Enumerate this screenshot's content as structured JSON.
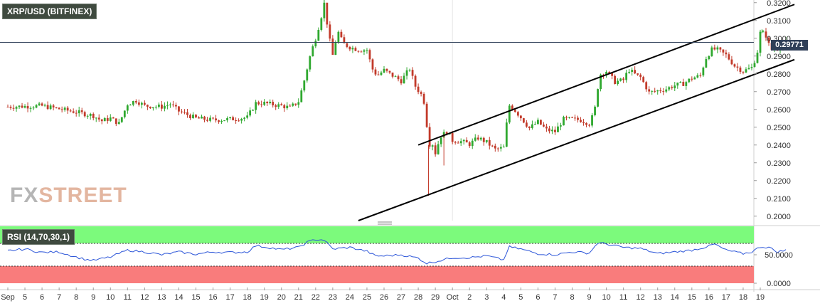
{
  "title": "XRP/USD (BITFINEX)",
  "watermark": {
    "fx": "FX",
    "street": "STREET"
  },
  "current_price_label": "0.29771",
  "rsi": {
    "label": "RSI (14,70,30,1)",
    "axis_labels": [
      "50.0000",
      "0.0000"
    ]
  },
  "colors": {
    "up": "#2fa82f",
    "down": "#c23a2a",
    "rsi_line": "#2a54d8",
    "overbought": "#7cfa7c",
    "oversold": "#f97c7c",
    "channel": "#000000",
    "price_line": "#2f3f58"
  },
  "chart_data": {
    "type": "candlestick",
    "title": "XRP/USD (BITFINEX)",
    "y_ticks": [
      "0.3200",
      "0.3100",
      "0.3000",
      "0.2900",
      "0.2800",
      "0.2700",
      "0.2600",
      "0.2500",
      "0.2400",
      "0.2300",
      "0.2200",
      "0.2100",
      "0.2000"
    ],
    "ylim": [
      0.1975,
      0.3215
    ],
    "x_ticks": [
      "Sep",
      "5",
      "6",
      "7",
      "8",
      "9",
      "10",
      "11",
      "12",
      "13",
      "14",
      "15",
      "16",
      "17",
      "18",
      "19",
      "20",
      "21",
      "22",
      "23",
      "24",
      "25",
      "26",
      "27",
      "28",
      "29",
      "Oct",
      "2",
      "3",
      "4",
      "5",
      "6",
      "7",
      "8",
      "9",
      "10",
      "11",
      "12",
      "13",
      "14",
      "15",
      "16",
      "17",
      "18",
      "19"
    ],
    "current_price": 0.29771,
    "close_path": [
      [
        0,
        0.2615
      ],
      [
        2,
        0.262
      ],
      [
        4,
        0.2585
      ],
      [
        5,
        0.2565
      ],
      [
        5.5,
        0.2535
      ],
      [
        6,
        0.255
      ],
      [
        6.5,
        0.252
      ],
      [
        7,
        0.263
      ],
      [
        7.5,
        0.265
      ],
      [
        8,
        0.262
      ],
      [
        9,
        0.2615
      ],
      [
        9.5,
        0.263
      ],
      [
        10,
        0.259
      ],
      [
        11,
        0.255
      ],
      [
        12,
        0.254
      ],
      [
        13,
        0.2545
      ],
      [
        14,
        0.2555
      ],
      [
        14.5,
        0.2635
      ],
      [
        15,
        0.2635
      ],
      [
        16,
        0.262
      ],
      [
        16.5,
        0.261
      ],
      [
        17,
        0.2645
      ],
      [
        17.3,
        0.275
      ],
      [
        17.7,
        0.291
      ],
      [
        18,
        0.3
      ],
      [
        18.3,
        0.311
      ],
      [
        18.5,
        0.3195
      ],
      [
        18.8,
        0.3
      ],
      [
        19,
        0.2905
      ],
      [
        19.3,
        0.304
      ],
      [
        19.6,
        0.297
      ],
      [
        20,
        0.295
      ],
      [
        20.5,
        0.2935
      ],
      [
        21,
        0.2935
      ],
      [
        21.3,
        0.283
      ],
      [
        21.6,
        0.279
      ],
      [
        22,
        0.282
      ],
      [
        22.5,
        0.279
      ],
      [
        23,
        0.276
      ],
      [
        23.5,
        0.283
      ],
      [
        23.8,
        0.2735
      ],
      [
        24.2,
        0.268
      ],
      [
        24.4,
        0.2625
      ],
      [
        24.6,
        0.24
      ],
      [
        24.8,
        0.2415
      ],
      [
        25,
        0.2355
      ],
      [
        25.3,
        0.245
      ],
      [
        25.7,
        0.2475
      ],
      [
        26,
        0.2425
      ],
      [
        26.5,
        0.242
      ],
      [
        27,
        0.2405
      ],
      [
        27.5,
        0.244
      ],
      [
        28,
        0.2415
      ],
      [
        28.5,
        0.2375
      ],
      [
        29,
        0.2385
      ],
      [
        29.3,
        0.2625
      ],
      [
        29.7,
        0.259
      ],
      [
        30,
        0.2555
      ],
      [
        30.5,
        0.2495
      ],
      [
        31,
        0.253
      ],
      [
        31.5,
        0.2485
      ],
      [
        32,
        0.2475
      ],
      [
        32.5,
        0.2545
      ],
      [
        33,
        0.2545
      ],
      [
        33.5,
        0.254
      ],
      [
        34,
        0.252
      ],
      [
        34.3,
        0.2585
      ],
      [
        34.6,
        0.2795
      ],
      [
        35,
        0.2815
      ],
      [
        35.5,
        0.2755
      ],
      [
        36,
        0.2765
      ],
      [
        36.3,
        0.2825
      ],
      [
        36.7,
        0.2795
      ],
      [
        37,
        0.278
      ],
      [
        37.5,
        0.2695
      ],
      [
        38,
        0.2705
      ],
      [
        38.5,
        0.2715
      ],
      [
        39,
        0.2735
      ],
      [
        39.5,
        0.2745
      ],
      [
        40,
        0.2775
      ],
      [
        40.5,
        0.279
      ],
      [
        40.8,
        0.2885
      ],
      [
        41.2,
        0.294
      ],
      [
        41.5,
        0.2935
      ],
      [
        42,
        0.2905
      ],
      [
        42.5,
        0.2845
      ],
      [
        43,
        0.2815
      ],
      [
        43.5,
        0.2835
      ],
      [
        43.8,
        0.2905
      ],
      [
        44,
        0.303
      ],
      [
        44.3,
        0.3025
      ],
      [
        44.6,
        0.2935
      ],
      [
        45,
        0.2945
      ],
      [
        45.3,
        0.2965
      ],
      [
        45.5,
        0.29771
      ]
    ],
    "wick_spikes": [
      {
        "x": 18.5,
        "high": 0.3215
      },
      {
        "x": 24.6,
        "low": 0.2115
      },
      {
        "x": 25.5,
        "low": 0.2285
      },
      {
        "x": 44.1,
        "high": 0.305
      }
    ],
    "channel_lines": [
      {
        "name": "upper",
        "from": [
          24.0,
          0.24
        ],
        "to": [
          46.0,
          0.319
        ]
      },
      {
        "name": "lower",
        "from": [
          20.5,
          0.1975
        ],
        "to": [
          46.0,
          0.288
        ]
      }
    ],
    "rsi_series": {
      "overbought": 70,
      "oversold": 30,
      "ylim": [
        0,
        100
      ],
      "path": [
        [
          0,
          57
        ],
        [
          1,
          60
        ],
        [
          2,
          54
        ],
        [
          3,
          55
        ],
        [
          4,
          46
        ],
        [
          4.5,
          42
        ],
        [
          5,
          40
        ],
        [
          6,
          46
        ],
        [
          7,
          58
        ],
        [
          8,
          55
        ],
        [
          9,
          50
        ],
        [
          10,
          55
        ],
        [
          11,
          51
        ],
        [
          12,
          55
        ],
        [
          13,
          54
        ],
        [
          14,
          55
        ],
        [
          14.5,
          66
        ],
        [
          15,
          64
        ],
        [
          16,
          59
        ],
        [
          17,
          63
        ],
        [
          17.5,
          72
        ],
        [
          18,
          77
        ],
        [
          18.5,
          76
        ],
        [
          19,
          60
        ],
        [
          20,
          63
        ],
        [
          21,
          56
        ],
        [
          21.5,
          48
        ],
        [
          22,
          48
        ],
        [
          23,
          50
        ],
        [
          23.5,
          47
        ],
        [
          24,
          44
        ],
        [
          24.5,
          35
        ],
        [
          25,
          38
        ],
        [
          26,
          45
        ],
        [
          27,
          45
        ],
        [
          28,
          48
        ],
        [
          29,
          41
        ],
        [
          29.3,
          64
        ],
        [
          30,
          60
        ],
        [
          31,
          52
        ],
        [
          32,
          50
        ],
        [
          33,
          55
        ],
        [
          34,
          53
        ],
        [
          34.5,
          71
        ],
        [
          35,
          69
        ],
        [
          36,
          63
        ],
        [
          37,
          61
        ],
        [
          38,
          52
        ],
        [
          39,
          55
        ],
        [
          40,
          58
        ],
        [
          41,
          65
        ],
        [
          41.3,
          69
        ],
        [
          42,
          58
        ],
        [
          43,
          52
        ],
        [
          43.5,
          55
        ],
        [
          44,
          64
        ],
        [
          44.5,
          63
        ],
        [
          45,
          55
        ],
        [
          45.5,
          58
        ]
      ]
    }
  }
}
